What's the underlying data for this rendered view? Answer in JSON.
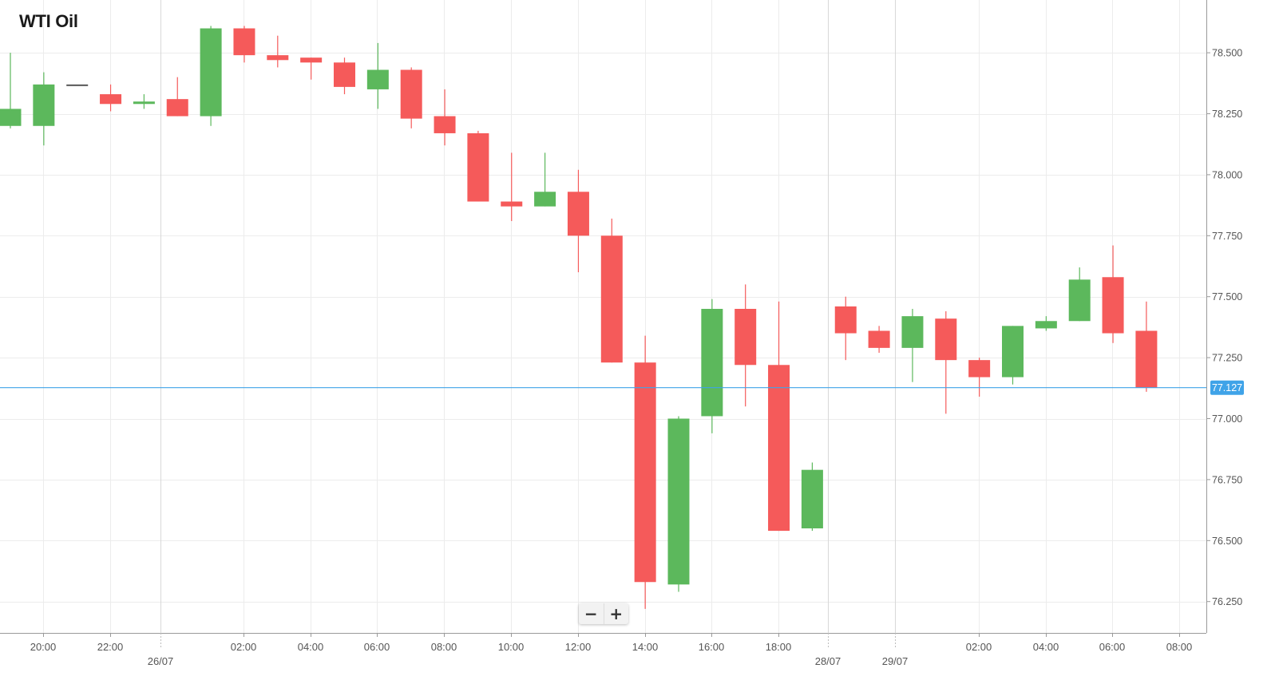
{
  "title": "WTI Oil",
  "zoom": {
    "minus": "−",
    "plus": "+"
  },
  "colors": {
    "up": "#5cb85c",
    "down": "#f55a5a",
    "doji": "#555555",
    "current": "#3fa3e8",
    "grid": "#ececec",
    "axis": "#9a9a9a"
  },
  "chart_data": {
    "type": "candlestick",
    "title": "WTI Oil",
    "grid": true,
    "y_range": [
      76.17,
      78.74
    ],
    "y_ticks": [
      "76.250",
      "76.500",
      "76.750",
      "77.000",
      "77.250",
      "77.500",
      "77.750",
      "78.000",
      "78.250",
      "78.500"
    ],
    "x_ticks": [
      "20:00",
      "22:00",
      "02:00",
      "04:00",
      "06:00",
      "08:00",
      "10:00",
      "12:00",
      "14:00",
      "16:00",
      "18:00",
      "02:00",
      "04:00",
      "06:00",
      "08:00"
    ],
    "date_labels": [
      "26/07",
      "28/07",
      "29/07"
    ],
    "current_price": "77.127",
    "candles": [
      {
        "o": 78.2,
        "h": 78.5,
        "l": 78.19,
        "c": 78.27
      },
      {
        "o": 78.2,
        "h": 78.42,
        "l": 78.12,
        "c": 78.37
      },
      {
        "o": 78.37,
        "h": 78.37,
        "l": 78.37,
        "c": 78.37
      },
      {
        "o": 78.33,
        "h": 78.37,
        "l": 78.26,
        "c": 78.29
      },
      {
        "o": 78.29,
        "h": 78.33,
        "l": 78.27,
        "c": 78.3
      },
      {
        "o": 78.31,
        "h": 78.4,
        "l": 78.24,
        "c": 78.24
      },
      {
        "o": 78.24,
        "h": 78.61,
        "l": 78.2,
        "c": 78.6
      },
      {
        "o": 78.6,
        "h": 78.61,
        "l": 78.46,
        "c": 78.49
      },
      {
        "o": 78.49,
        "h": 78.57,
        "l": 78.44,
        "c": 78.47
      },
      {
        "o": 78.48,
        "h": 78.48,
        "l": 78.39,
        "c": 78.46
      },
      {
        "o": 78.46,
        "h": 78.48,
        "l": 78.33,
        "c": 78.36
      },
      {
        "o": 78.35,
        "h": 78.54,
        "l": 78.27,
        "c": 78.43
      },
      {
        "o": 78.43,
        "h": 78.44,
        "l": 78.19,
        "c": 78.23
      },
      {
        "o": 78.24,
        "h": 78.35,
        "l": 78.12,
        "c": 78.17
      },
      {
        "o": 78.17,
        "h": 78.18,
        "l": 77.89,
        "c": 77.89
      },
      {
        "o": 77.89,
        "h": 78.09,
        "l": 77.81,
        "c": 77.87
      },
      {
        "o": 77.87,
        "h": 78.09,
        "l": 77.87,
        "c": 77.93
      },
      {
        "o": 77.93,
        "h": 78.02,
        "l": 77.6,
        "c": 77.75
      },
      {
        "o": 77.75,
        "h": 77.82,
        "l": 77.23,
        "c": 77.23
      },
      {
        "o": 77.23,
        "h": 77.34,
        "l": 76.22,
        "c": 76.33
      },
      {
        "o": 76.32,
        "h": 77.01,
        "l": 76.29,
        "c": 77.0
      },
      {
        "o": 77.01,
        "h": 77.49,
        "l": 76.94,
        "c": 77.45
      },
      {
        "o": 77.45,
        "h": 77.55,
        "l": 77.05,
        "c": 77.22
      },
      {
        "o": 77.22,
        "h": 77.48,
        "l": 76.54,
        "c": 76.54
      },
      {
        "o": 76.55,
        "h": 76.82,
        "l": 76.54,
        "c": 76.79
      },
      {
        "o": 77.46,
        "h": 77.5,
        "l": 77.24,
        "c": 77.35
      },
      {
        "o": 77.36,
        "h": 77.38,
        "l": 77.27,
        "c": 77.29
      },
      {
        "o": 77.29,
        "h": 77.45,
        "l": 77.15,
        "c": 77.42
      },
      {
        "o": 77.41,
        "h": 77.44,
        "l": 77.02,
        "c": 77.24
      },
      {
        "o": 77.24,
        "h": 77.25,
        "l": 77.09,
        "c": 77.17
      },
      {
        "o": 77.17,
        "h": 77.38,
        "l": 77.14,
        "c": 77.38
      },
      {
        "o": 77.37,
        "h": 77.42,
        "l": 77.36,
        "c": 77.4
      },
      {
        "o": 77.4,
        "h": 77.62,
        "l": 77.4,
        "c": 77.57
      },
      {
        "o": 77.58,
        "h": 77.71,
        "l": 77.31,
        "c": 77.35
      },
      {
        "o": 77.36,
        "h": 77.48,
        "l": 77.11,
        "c": 77.127
      }
    ]
  }
}
